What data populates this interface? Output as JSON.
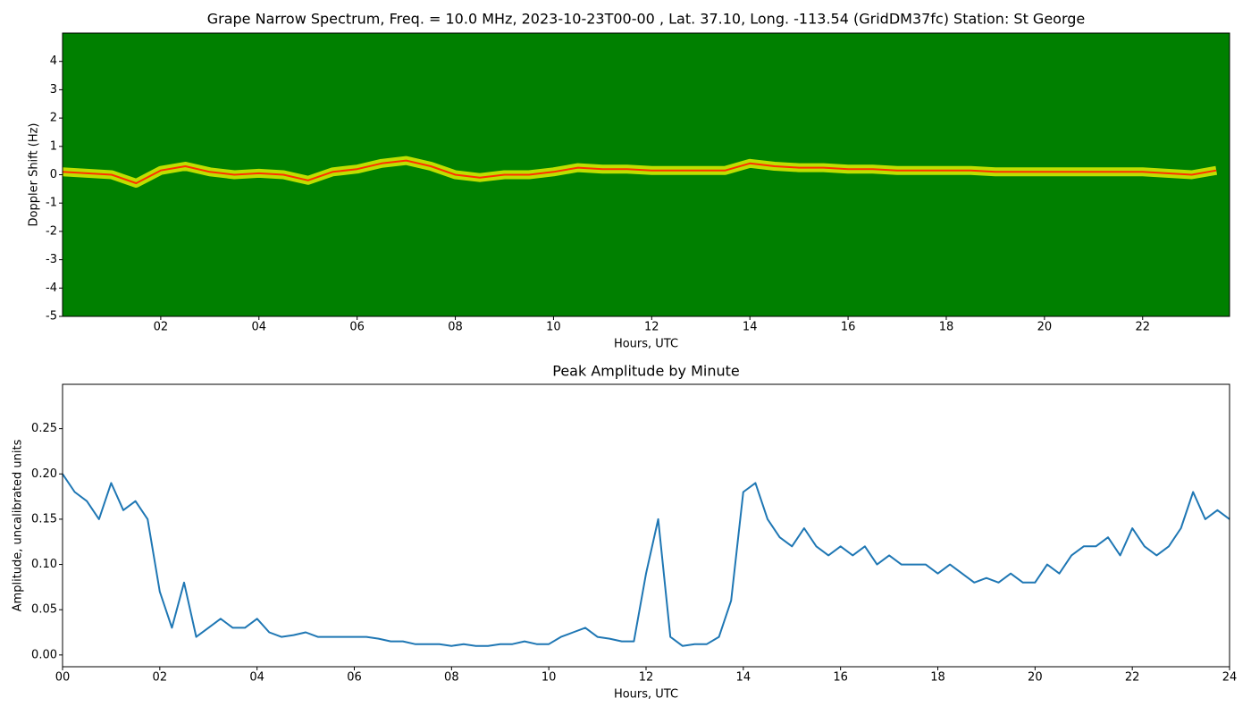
{
  "chart_data": [
    {
      "type": "spectrogram",
      "title": "Grape Narrow Spectrum, Freq. = 10.0 MHz, 2023-10-23T00-00 , Lat.  37.10, Long. -113.54 (GridDM37fc) Station: St George",
      "xlabel": "Hours, UTC",
      "ylabel": "Doppler Shift (Hz)",
      "background": "#008000",
      "halo_color": "#ffff00",
      "color": "#ff3000",
      "xlim": [
        0,
        23.77
      ],
      "ylim": [
        -5,
        5
      ],
      "xticks": [
        {
          "value": 2,
          "label": "02"
        },
        {
          "value": 4,
          "label": "04"
        },
        {
          "value": 6,
          "label": "06"
        },
        {
          "value": 8,
          "label": "08"
        },
        {
          "value": 10,
          "label": "10"
        },
        {
          "value": 12,
          "label": "12"
        },
        {
          "value": 14,
          "label": "14"
        },
        {
          "value": 16,
          "label": "16"
        },
        {
          "value": 18,
          "label": "18"
        },
        {
          "value": 20,
          "label": "20"
        },
        {
          "value": 22,
          "label": "22"
        }
      ],
      "yticks": [
        -5,
        -4,
        -3,
        -2,
        -1,
        0,
        1,
        2,
        3,
        4
      ],
      "x": [
        0,
        0.5,
        1,
        1.5,
        2,
        2.5,
        3,
        3.5,
        4,
        4.5,
        5,
        5.5,
        6,
        6.5,
        7,
        7.5,
        8,
        8.5,
        9,
        9.5,
        10,
        10.5,
        11,
        11.5,
        12,
        12.5,
        13,
        13.5,
        14,
        14.5,
        15,
        15.5,
        16,
        16.5,
        17,
        17.5,
        18,
        18.5,
        19,
        19.5,
        20,
        20.5,
        21,
        21.5,
        22,
        22.5,
        23,
        23.5
      ],
      "values": [
        0.1,
        0.05,
        0.0,
        -0.3,
        0.15,
        0.3,
        0.1,
        0.0,
        0.05,
        0.0,
        -0.2,
        0.1,
        0.2,
        0.4,
        0.5,
        0.3,
        0.0,
        -0.1,
        0.0,
        0.0,
        0.1,
        0.25,
        0.2,
        0.2,
        0.15,
        0.15,
        0.15,
        0.15,
        0.4,
        0.3,
        0.25,
        0.25,
        0.2,
        0.2,
        0.15,
        0.15,
        0.15,
        0.15,
        0.1,
        0.1,
        0.1,
        0.1,
        0.1,
        0.1,
        0.1,
        0.05,
        0.0,
        0.15
      ]
    },
    {
      "type": "line",
      "title": "Peak Amplitude by Minute",
      "xlabel": "Hours, UTC",
      "ylabel": "Amplitude, uncalibrated units",
      "color": "#1f77b4",
      "xlim": [
        0,
        24
      ],
      "ylim": [
        -0.013,
        0.299
      ],
      "xticks": [
        {
          "value": 0,
          "label": "00"
        },
        {
          "value": 2,
          "label": "02"
        },
        {
          "value": 4,
          "label": "04"
        },
        {
          "value": 6,
          "label": "06"
        },
        {
          "value": 8,
          "label": "08"
        },
        {
          "value": 10,
          "label": "10"
        },
        {
          "value": 12,
          "label": "12"
        },
        14,
        16,
        18,
        20,
        22,
        24
      ],
      "yticks": [
        {
          "value": 0,
          "label": "0.00"
        },
        {
          "value": 0.05,
          "label": "0.05"
        },
        {
          "value": 0.1,
          "label": "0.10"
        },
        {
          "value": 0.15,
          "label": "0.15"
        },
        {
          "value": 0.2,
          "label": "0.20"
        },
        {
          "value": 0.25,
          "label": "0.25"
        }
      ],
      "x": [
        0,
        0.25,
        0.5,
        0.75,
        1,
        1.25,
        1.5,
        1.75,
        2,
        2.25,
        2.5,
        2.75,
        3,
        3.25,
        3.5,
        3.75,
        4,
        4.25,
        4.5,
        4.75,
        5,
        5.25,
        5.5,
        5.75,
        6,
        6.25,
        6.5,
        6.75,
        7,
        7.25,
        7.5,
        7.75,
        8,
        8.25,
        8.5,
        8.75,
        9,
        9.25,
        9.5,
        9.75,
        10,
        10.25,
        10.5,
        10.75,
        11,
        11.25,
        11.5,
        11.75,
        12,
        12.25,
        12.5,
        12.75,
        13,
        13.25,
        13.5,
        13.75,
        14,
        14.25,
        14.5,
        14.75,
        15,
        15.25,
        15.5,
        15.75,
        16,
        16.25,
        16.5,
        16.75,
        17,
        17.25,
        17.5,
        17.75,
        18,
        18.25,
        18.5,
        18.75,
        19,
        19.25,
        19.5,
        19.75,
        20,
        20.25,
        20.5,
        20.75,
        21,
        21.25,
        21.5,
        21.75,
        22,
        22.25,
        22.5,
        22.75,
        23,
        23.25,
        23.5,
        23.75,
        24
      ],
      "values": [
        0.2,
        0.18,
        0.17,
        0.15,
        0.19,
        0.16,
        0.17,
        0.15,
        0.07,
        0.03,
        0.08,
        0.02,
        0.03,
        0.04,
        0.03,
        0.03,
        0.04,
        0.025,
        0.02,
        0.022,
        0.025,
        0.02,
        0.02,
        0.02,
        0.02,
        0.02,
        0.018,
        0.015,
        0.015,
        0.012,
        0.012,
        0.012,
        0.01,
        0.012,
        0.01,
        0.01,
        0.012,
        0.012,
        0.015,
        0.012,
        0.012,
        0.02,
        0.025,
        0.03,
        0.02,
        0.018,
        0.015,
        0.015,
        0.09,
        0.15,
        0.02,
        0.01,
        0.012,
        0.012,
        0.02,
        0.06,
        0.18,
        0.19,
        0.15,
        0.13,
        0.12,
        0.14,
        0.12,
        0.11,
        0.12,
        0.11,
        0.12,
        0.1,
        0.11,
        0.1,
        0.1,
        0.1,
        0.09,
        0.1,
        0.09,
        0.08,
        0.085,
        0.08,
        0.09,
        0.08,
        0.08,
        0.1,
        0.09,
        0.11,
        0.12,
        0.12,
        0.13,
        0.11,
        0.14,
        0.12,
        0.11,
        0.12,
        0.14,
        0.18,
        0.15,
        0.16,
        0.15
      ]
    }
  ]
}
